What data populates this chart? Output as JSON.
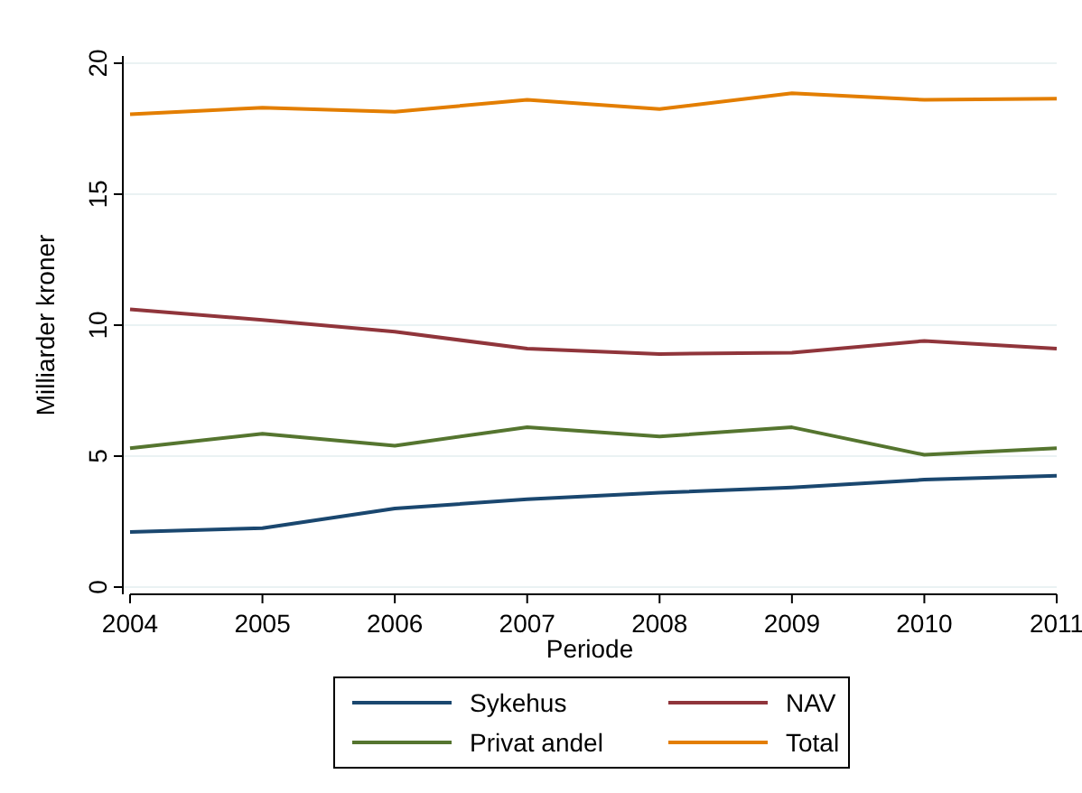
{
  "chart_data": {
    "type": "line",
    "xlabel": "Periode",
    "ylabel": "Milliarder kroner",
    "x": [
      2004,
      2005,
      2006,
      2007,
      2008,
      2009,
      2010,
      2011
    ],
    "xlim": [
      2004,
      2011
    ],
    "xticks": [
      2004,
      2005,
      2006,
      2007,
      2008,
      2009,
      2010,
      2011
    ],
    "ylim": [
      0,
      20
    ],
    "yticks": [
      0,
      5,
      10,
      15,
      20
    ],
    "grid": "y",
    "legend": "bottom",
    "marker": "none",
    "line_style": "solid",
    "series": [
      {
        "name": "Sykehus",
        "color": "#1a476f",
        "values": [
          2.1,
          2.25,
          3.0,
          3.35,
          3.6,
          3.8,
          4.1,
          4.25
        ]
      },
      {
        "name": "NAV",
        "color": "#90353b",
        "values": [
          10.6,
          10.2,
          9.75,
          9.1,
          8.9,
          8.95,
          9.4,
          9.1
        ]
      },
      {
        "name": "Privat andel",
        "color": "#55752f",
        "values": [
          5.3,
          5.85,
          5.4,
          6.1,
          5.75,
          6.1,
          5.05,
          5.3
        ]
      },
      {
        "name": "Total",
        "color": "#e37e00",
        "values": [
          18.05,
          18.3,
          18.15,
          18.6,
          18.25,
          18.85,
          18.6,
          18.65
        ]
      }
    ]
  }
}
